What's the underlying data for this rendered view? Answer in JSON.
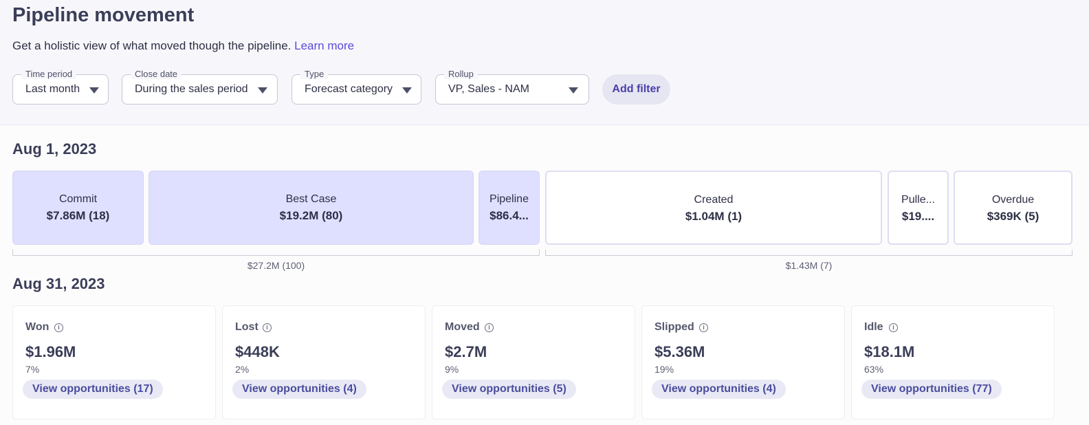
{
  "header": {
    "title": "Pipeline movement",
    "subtitle": "Get a holistic view of what moved though the pipeline.",
    "learn_more": "Learn more"
  },
  "filters": [
    {
      "label": "Time period",
      "value": "Last month"
    },
    {
      "label": "Close date",
      "value": "During the sales period"
    },
    {
      "label": "Type",
      "value": "Forecast category"
    },
    {
      "label": "Rollup",
      "value": "VP, Sales - NAM"
    }
  ],
  "add_filter": "Add filter",
  "start": {
    "date": "Aug 1, 2023",
    "boxes": [
      {
        "label": "Commit",
        "value": "$7.86M (18)"
      },
      {
        "label": "Best Case",
        "value": "$19.2M (80)"
      },
      {
        "label": "Pipeline",
        "value": "$86.4..."
      },
      {
        "label": "Created",
        "value": "$1.04M (1)"
      },
      {
        "label": "Pulle...",
        "value": "$19...."
      },
      {
        "label": "Overdue",
        "value": "$369K (5)"
      }
    ],
    "group_totals": [
      "$27.2M (100)",
      "$1.43M (7)"
    ]
  },
  "end": {
    "date": "Aug 31, 2023",
    "cards": [
      {
        "title": "Won",
        "amount": "$1.96M",
        "percent": "7%",
        "action": "View opportunities (17)"
      },
      {
        "title": "Lost",
        "amount": "$448K",
        "percent": "2%",
        "action": "View opportunities (4)"
      },
      {
        "title": "Moved",
        "amount": "$2.7M",
        "percent": "9%",
        "action": "View opportunities (5)"
      },
      {
        "title": "Slipped",
        "amount": "$5.36M",
        "percent": "19%",
        "action": "View opportunities (4)"
      },
      {
        "title": "Idle",
        "amount": "$18.1M",
        "percent": "63%",
        "action": "View opportunities (77)"
      }
    ]
  },
  "colors": {
    "accent": "#5b4bdb",
    "box_fill": "#dfe0ff",
    "button_bg": "#e8e9f4"
  },
  "icons": {
    "filter_dropdown": "caret-down-icon",
    "card_info": "info-icon"
  }
}
